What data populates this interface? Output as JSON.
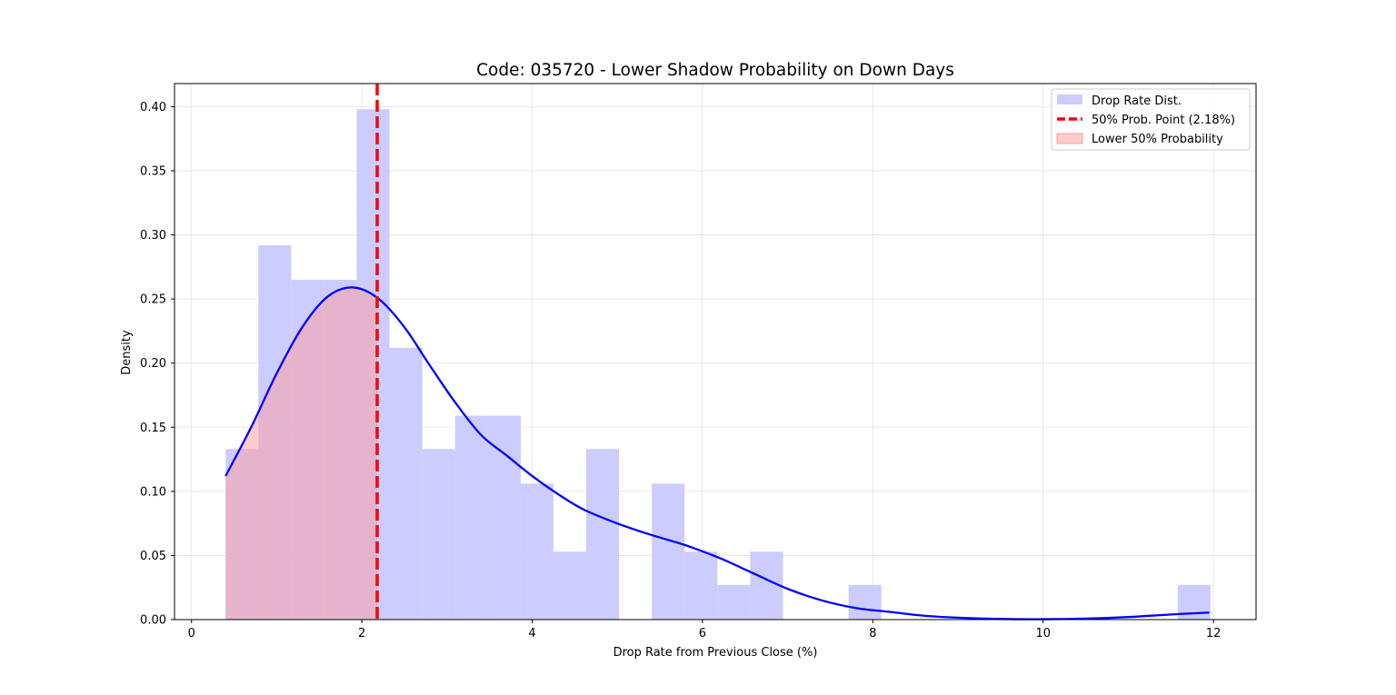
{
  "chart_data": {
    "type": "histogram",
    "title": "Code: 035720 - Lower Shadow Probability on Down Days",
    "xlabel": "Drop Rate from Previous Close (%)",
    "ylabel": "Density",
    "xlim": [
      -0.2,
      12.5
    ],
    "ylim": [
      0,
      0.418
    ],
    "xticks": [
      0,
      2,
      4,
      6,
      8,
      10,
      12
    ],
    "yticks": [
      0.0,
      0.05,
      0.1,
      0.15,
      0.2,
      0.25,
      0.3,
      0.35,
      0.4
    ],
    "xtick_labels": [
      "0",
      "2",
      "4",
      "6",
      "8",
      "10",
      "12"
    ],
    "ytick_labels": [
      "0.00",
      "0.05",
      "0.10",
      "0.15",
      "0.20",
      "0.25",
      "0.30",
      "0.35",
      "0.40"
    ],
    "grid": true,
    "legend_position": "top-right",
    "histogram": {
      "name": "Drop Rate Dist.",
      "color": "#ccccff",
      "bins": [
        {
          "x0": 0.4,
          "x1": 0.785,
          "density": 0.133
        },
        {
          "x0": 0.785,
          "x1": 1.17,
          "density": 0.292
        },
        {
          "x0": 1.17,
          "x1": 1.555,
          "density": 0.265
        },
        {
          "x0": 1.555,
          "x1": 1.94,
          "density": 0.265
        },
        {
          "x0": 1.94,
          "x1": 2.325,
          "density": 0.398
        },
        {
          "x0": 2.325,
          "x1": 2.71,
          "density": 0.212
        },
        {
          "x0": 2.71,
          "x1": 3.095,
          "density": 0.133
        },
        {
          "x0": 3.095,
          "x1": 3.48,
          "density": 0.159
        },
        {
          "x0": 3.48,
          "x1": 3.865,
          "density": 0.159
        },
        {
          "x0": 3.865,
          "x1": 4.25,
          "density": 0.106
        },
        {
          "x0": 4.25,
          "x1": 4.635,
          "density": 0.053
        },
        {
          "x0": 4.635,
          "x1": 5.02,
          "density": 0.133
        },
        {
          "x0": 5.02,
          "x1": 5.405,
          "density": 0.0
        },
        {
          "x0": 5.405,
          "x1": 5.79,
          "density": 0.106
        },
        {
          "x0": 5.79,
          "x1": 6.175,
          "density": 0.053
        },
        {
          "x0": 6.175,
          "x1": 6.56,
          "density": 0.027
        },
        {
          "x0": 6.56,
          "x1": 6.945,
          "density": 0.053
        },
        {
          "x0": 6.945,
          "x1": 7.33,
          "density": 0.0
        },
        {
          "x0": 7.33,
          "x1": 7.715,
          "density": 0.0
        },
        {
          "x0": 7.715,
          "x1": 8.1,
          "density": 0.027
        },
        {
          "x0": 11.58,
          "x1": 11.965,
          "density": 0.027
        }
      ]
    },
    "kde": {
      "color": "#0000ff",
      "points": [
        [
          0.4,
          0.112
        ],
        [
          0.7,
          0.15
        ],
        [
          1.0,
          0.192
        ],
        [
          1.3,
          0.228
        ],
        [
          1.6,
          0.252
        ],
        [
          1.9,
          0.259
        ],
        [
          2.2,
          0.25
        ],
        [
          2.5,
          0.228
        ],
        [
          2.8,
          0.198
        ],
        [
          3.1,
          0.169
        ],
        [
          3.4,
          0.144
        ],
        [
          3.7,
          0.128
        ],
        [
          4.0,
          0.112
        ],
        [
          4.3,
          0.098
        ],
        [
          4.6,
          0.086
        ],
        [
          5.0,
          0.075
        ],
        [
          5.4,
          0.066
        ],
        [
          5.8,
          0.058
        ],
        [
          6.2,
          0.048
        ],
        [
          6.6,
          0.036
        ],
        [
          7.0,
          0.024
        ],
        [
          7.4,
          0.015
        ],
        [
          7.8,
          0.009
        ],
        [
          8.2,
          0.006
        ],
        [
          8.6,
          0.003
        ],
        [
          9.0,
          0.0015
        ],
        [
          9.5,
          0.0005
        ],
        [
          10.0,
          0.0003
        ],
        [
          10.5,
          0.0008
        ],
        [
          11.0,
          0.002
        ],
        [
          11.5,
          0.004
        ],
        [
          11.95,
          0.0055
        ]
      ]
    },
    "median_line": {
      "name": "50% Prob. Point (2.18%)",
      "x": 2.18,
      "color": "#ff0000"
    },
    "shaded_region": {
      "name": "Lower 50% Probability",
      "x0": 0.4,
      "x1": 2.18,
      "color": "#ff9999"
    }
  }
}
